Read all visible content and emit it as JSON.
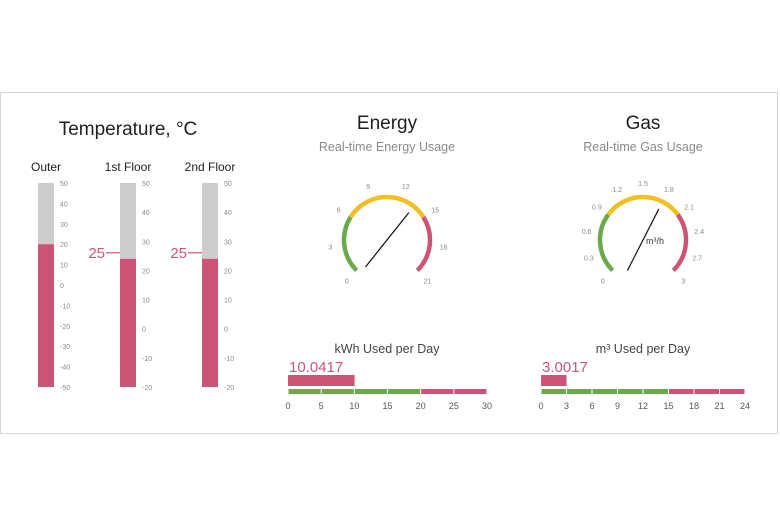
{
  "colors": {
    "pink": "#cc5577",
    "gray": "#cccccc",
    "green": "#6aaa4a",
    "yellow": "#f0c020",
    "needle": "#111111",
    "border": "#d4d4d4"
  },
  "temperature": {
    "title": "Temperature, °C",
    "thermometers": [
      {
        "label": "Outer",
        "ticks": [
          "50",
          "40",
          "30",
          "20",
          "10",
          "0",
          "-10",
          "-20",
          "-30",
          "-40",
          "-50"
        ],
        "min": -50,
        "max": 50,
        "value": 20,
        "marker": null
      },
      {
        "label": "1st Floor",
        "ticks": [
          "50",
          "40",
          "30",
          "20",
          "10",
          "0",
          "-10",
          "-20"
        ],
        "min": -20,
        "max": 50,
        "value": 24,
        "marker": "25"
      },
      {
        "label": "2nd Floor",
        "ticks": [
          "50",
          "40",
          "30",
          "20",
          "10",
          "0",
          "-10",
          "-20"
        ],
        "min": -20,
        "max": 50,
        "value": 24,
        "marker": "25"
      }
    ]
  },
  "energy": {
    "title": "Energy",
    "subtitle": "Real-time Energy Usage",
    "gauge": {
      "min": 0,
      "max": 21,
      "value": 13.5,
      "unit": "",
      "ticks": [
        "0",
        "3",
        "6",
        "9",
        "12",
        "15",
        "18",
        "21"
      ],
      "ranges": [
        {
          "from": 0,
          "to": 6,
          "color": "green"
        },
        {
          "from": 6,
          "to": 15,
          "color": "yellow"
        },
        {
          "from": 15,
          "to": 21,
          "color": "pink"
        }
      ]
    },
    "bar": {
      "label": "kWh Used per Day",
      "value_text": "10.0417",
      "value": 10.0417,
      "max": 30,
      "ticks": [
        "0",
        "5",
        "10",
        "15",
        "20",
        "25",
        "30"
      ],
      "ranges": [
        {
          "from": 0,
          "to": 20,
          "color": "green"
        },
        {
          "from": 20,
          "to": 30,
          "color": "pink"
        }
      ]
    }
  },
  "gas": {
    "title": "Gas",
    "subtitle": "Real-time Gas Usage",
    "gauge": {
      "min": 0,
      "max": 3,
      "value": 1.8,
      "unit": "m³/h",
      "ticks": [
        "0",
        "0.3",
        "0.6",
        "0.9",
        "1.2",
        "1.5",
        "1.8",
        "2.1",
        "2.4",
        "2.7",
        "3"
      ],
      "ranges": [
        {
          "from": 0,
          "to": 0.9,
          "color": "green"
        },
        {
          "from": 0.9,
          "to": 2.1,
          "color": "yellow"
        },
        {
          "from": 2.1,
          "to": 3,
          "color": "pink"
        }
      ]
    },
    "bar": {
      "label": "m³ Used per Day",
      "value_text": "3.0017",
      "value": 3.0017,
      "max": 24,
      "ticks": [
        "0",
        "3",
        "6",
        "9",
        "12",
        "15",
        "18",
        "21",
        "24"
      ],
      "ranges": [
        {
          "from": 0,
          "to": 15,
          "color": "green"
        },
        {
          "from": 15,
          "to": 24,
          "color": "pink"
        }
      ]
    }
  }
}
